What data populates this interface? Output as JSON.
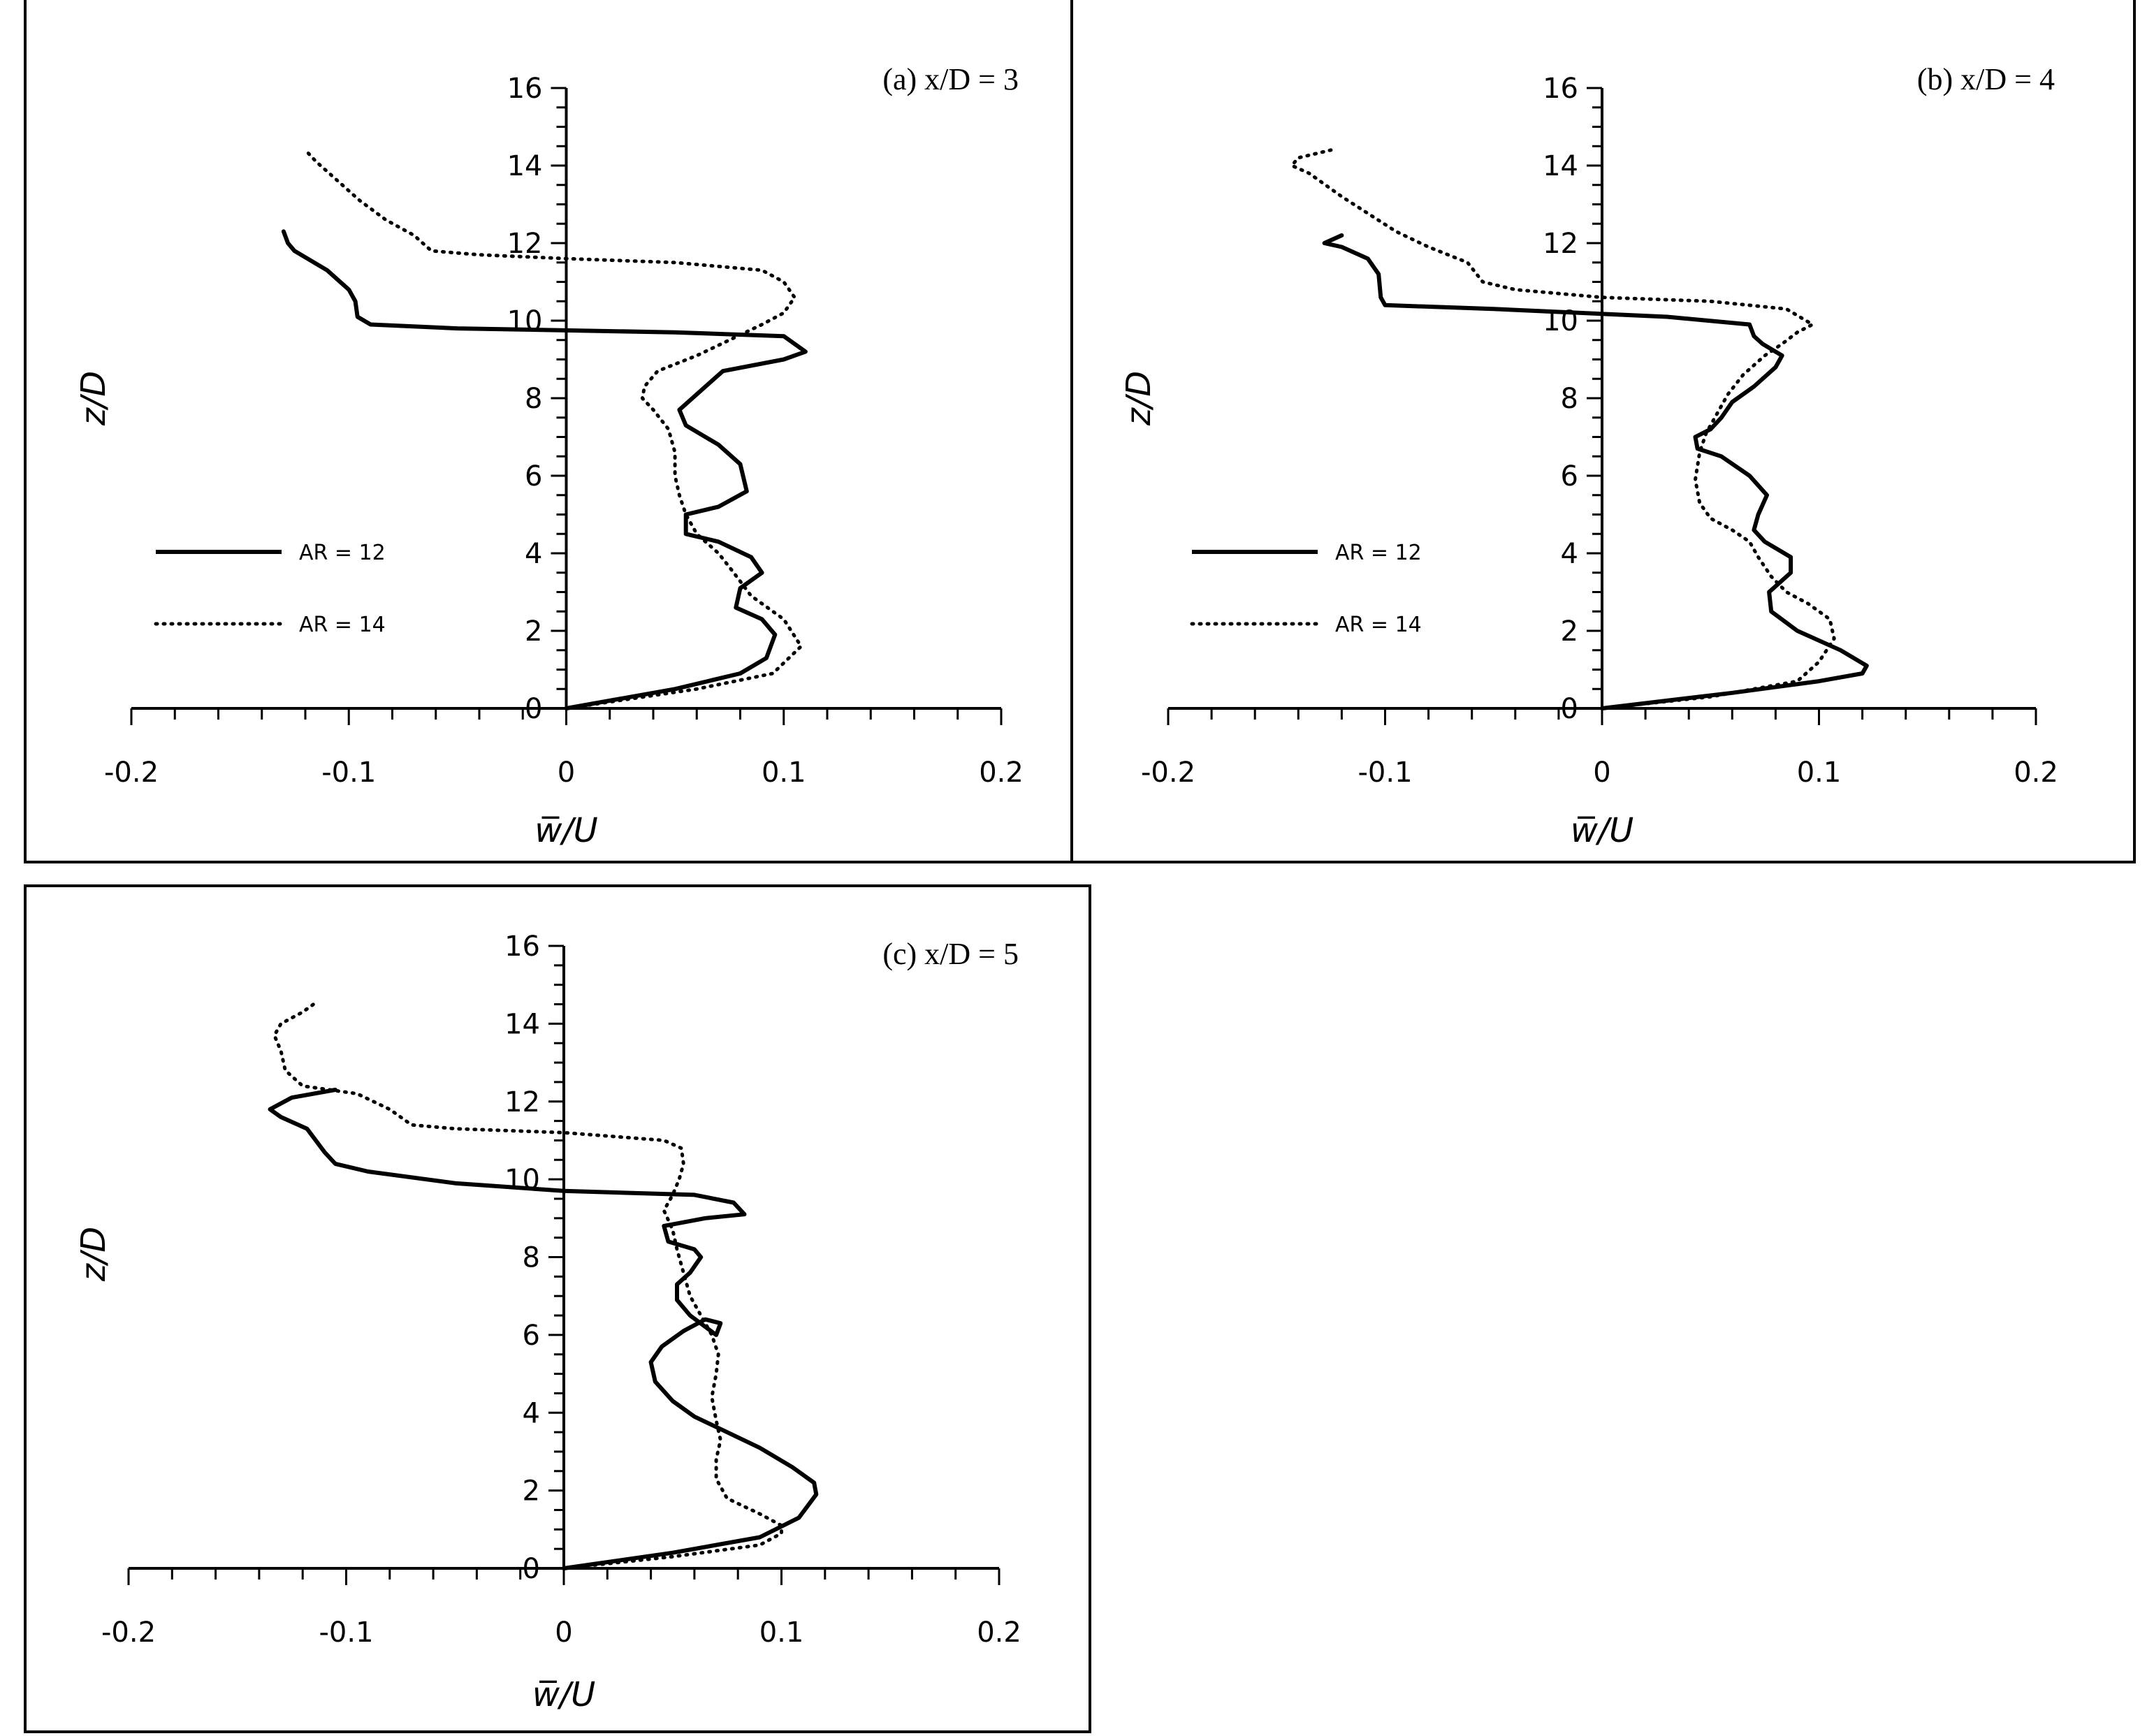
{
  "chart_data": [
    {
      "type": "line",
      "title": "(a) x/D = 3",
      "xlabel": "w̅/U",
      "ylabel": "z/D",
      "xlim": [
        -0.2,
        0.2
      ],
      "ylim": [
        0,
        16
      ],
      "xticks": [
        "-0.2",
        "-0.1",
        "0",
        "0.1",
        "0.2"
      ],
      "yticks": [
        "0",
        "2",
        "4",
        "6",
        "8",
        "10",
        "12",
        "14",
        "16"
      ],
      "legend": "middle-left",
      "series": [
        {
          "name": "AR = 12",
          "style": "solid",
          "points": [
            [
              0,
              0
            ],
            [
              0.05,
              0.5
            ],
            [
              0.08,
              0.9
            ],
            [
              0.092,
              1.3
            ],
            [
              0.096,
              1.9
            ],
            [
              0.09,
              2.3
            ],
            [
              0.078,
              2.6
            ],
            [
              0.08,
              3.1
            ],
            [
              0.09,
              3.5
            ],
            [
              0.085,
              3.9
            ],
            [
              0.07,
              4.3
            ],
            [
              0.055,
              4.5
            ],
            [
              0.055,
              5.0
            ],
            [
              0.07,
              5.2
            ],
            [
              0.083,
              5.6
            ],
            [
              0.08,
              6.3
            ],
            [
              0.07,
              6.8
            ],
            [
              0.055,
              7.3
            ],
            [
              0.052,
              7.7
            ],
            [
              0.062,
              8.2
            ],
            [
              0.072,
              8.7
            ],
            [
              0.1,
              9.0
            ],
            [
              0.11,
              9.2
            ],
            [
              0.1,
              9.6
            ],
            [
              0.05,
              9.7
            ],
            [
              -0.05,
              9.8
            ],
            [
              -0.09,
              9.9
            ],
            [
              -0.096,
              10.1
            ],
            [
              -0.097,
              10.5
            ],
            [
              -0.1,
              10.8
            ],
            [
              -0.11,
              11.3
            ],
            [
              -0.125,
              11.8
            ],
            [
              -0.128,
              12.0
            ],
            [
              -0.13,
              12.3
            ]
          ]
        },
        {
          "name": "AR = 14",
          "style": "dotted",
          "points": [
            [
              0,
              0
            ],
            [
              0.06,
              0.5
            ],
            [
              0.095,
              0.9
            ],
            [
              0.108,
              1.6
            ],
            [
              0.1,
              2.3
            ],
            [
              0.085,
              2.9
            ],
            [
              0.077,
              3.5
            ],
            [
              0.07,
              4.0
            ],
            [
              0.06,
              4.5
            ],
            [
              0.055,
              5.0
            ],
            [
              0.052,
              5.5
            ],
            [
              0.05,
              6.0
            ],
            [
              0.05,
              6.6
            ],
            [
              0.047,
              7.2
            ],
            [
              0.04,
              7.7
            ],
            [
              0.035,
              8.0
            ],
            [
              0.036,
              8.3
            ],
            [
              0.042,
              8.7
            ],
            [
              0.06,
              9.1
            ],
            [
              0.075,
              9.5
            ],
            [
              0.09,
              9.9
            ],
            [
              0.1,
              10.2
            ],
            [
              0.105,
              10.6
            ],
            [
              0.1,
              11.0
            ],
            [
              0.09,
              11.3
            ],
            [
              0.05,
              11.5
            ],
            [
              0.0,
              11.6
            ],
            [
              -0.04,
              11.7
            ],
            [
              -0.062,
              11.8
            ],
            [
              -0.07,
              12.2
            ],
            [
              -0.083,
              12.6
            ],
            [
              -0.095,
              13.1
            ],
            [
              -0.105,
              13.6
            ],
            [
              -0.115,
              14.1
            ],
            [
              -0.12,
              14.4
            ]
          ]
        }
      ]
    },
    {
      "type": "line",
      "title": "(b) x/D = 4",
      "xlabel": "w̅/U",
      "ylabel": "z/D",
      "xlim": [
        -0.2,
        0.2
      ],
      "ylim": [
        0,
        16
      ],
      "xticks": [
        "-0.2",
        "-0.1",
        "0",
        "0.1",
        "0.2"
      ],
      "yticks": [
        "0",
        "2",
        "4",
        "6",
        "8",
        "10",
        "12",
        "14",
        "16"
      ],
      "legend": "middle-left",
      "series": [
        {
          "name": "AR = 12",
          "style": "solid",
          "points": [
            [
              0,
              0
            ],
            [
              0.06,
              0.4
            ],
            [
              0.1,
              0.7
            ],
            [
              0.12,
              0.9
            ],
            [
              0.122,
              1.1
            ],
            [
              0.11,
              1.5
            ],
            [
              0.09,
              2.0
            ],
            [
              0.078,
              2.5
            ],
            [
              0.077,
              3.0
            ],
            [
              0.087,
              3.5
            ],
            [
              0.087,
              3.9
            ],
            [
              0.075,
              4.3
            ],
            [
              0.07,
              4.6
            ],
            [
              0.072,
              5.0
            ],
            [
              0.076,
              5.5
            ],
            [
              0.068,
              6.0
            ],
            [
              0.055,
              6.5
            ],
            [
              0.044,
              6.7
            ],
            [
              0.043,
              7.0
            ],
            [
              0.05,
              7.2
            ],
            [
              0.055,
              7.5
            ],
            [
              0.06,
              7.9
            ],
            [
              0.07,
              8.3
            ],
            [
              0.08,
              8.8
            ],
            [
              0.083,
              9.1
            ],
            [
              0.074,
              9.4
            ],
            [
              0.07,
              9.6
            ],
            [
              0.068,
              9.9
            ],
            [
              0.03,
              10.1
            ],
            [
              -0.05,
              10.3
            ],
            [
              -0.1,
              10.4
            ],
            [
              -0.102,
              10.6
            ],
            [
              -0.103,
              11.2
            ],
            [
              -0.108,
              11.6
            ],
            [
              -0.12,
              11.9
            ],
            [
              -0.128,
              12.0
            ],
            [
              -0.12,
              12.2
            ]
          ]
        },
        {
          "name": "AR = 14",
          "style": "dotted",
          "points": [
            [
              0,
              0
            ],
            [
              0.05,
              0.3
            ],
            [
              0.09,
              0.7
            ],
            [
              0.1,
              1.2
            ],
            [
              0.107,
              1.8
            ],
            [
              0.105,
              2.3
            ],
            [
              0.095,
              2.7
            ],
            [
              0.085,
              3.0
            ],
            [
              0.078,
              3.4
            ],
            [
              0.072,
              3.9
            ],
            [
              0.068,
              4.3
            ],
            [
              0.06,
              4.6
            ],
            [
              0.05,
              4.9
            ],
            [
              0.045,
              5.3
            ],
            [
              0.043,
              5.9
            ],
            [
              0.045,
              6.6
            ],
            [
              0.048,
              7.1
            ],
            [
              0.053,
              7.6
            ],
            [
              0.058,
              8.1
            ],
            [
              0.065,
              8.6
            ],
            [
              0.075,
              9.1
            ],
            [
              0.083,
              9.4
            ],
            [
              0.09,
              9.7
            ],
            [
              0.097,
              9.9
            ],
            [
              0.085,
              10.3
            ],
            [
              0.05,
              10.5
            ],
            [
              0.0,
              10.6
            ],
            [
              -0.04,
              10.8
            ],
            [
              -0.055,
              11.0
            ],
            [
              -0.062,
              11.5
            ],
            [
              -0.08,
              11.9
            ],
            [
              -0.095,
              12.3
            ],
            [
              -0.12,
              13.2
            ],
            [
              -0.135,
              13.8
            ],
            [
              -0.143,
              14.0
            ],
            [
              -0.14,
              14.2
            ],
            [
              -0.125,
              14.4
            ]
          ]
        }
      ]
    },
    {
      "type": "line",
      "title": "(c) x/D = 5",
      "xlabel": "w̅/U",
      "ylabel": "z/D",
      "xlim": [
        -0.2,
        0.2
      ],
      "ylim": [
        0,
        16
      ],
      "xticks": [
        "-0.2",
        "-0.1",
        "0",
        "0.1",
        "0.2"
      ],
      "yticks": [
        "0",
        "2",
        "4",
        "6",
        "8",
        "10",
        "12",
        "14",
        "16"
      ],
      "series": [
        {
          "name": "AR = 12",
          "style": "solid",
          "points": [
            [
              0,
              0
            ],
            [
              0.05,
              0.4
            ],
            [
              0.09,
              0.8
            ],
            [
              0.108,
              1.3
            ],
            [
              0.116,
              1.9
            ],
            [
              0.115,
              2.2
            ],
            [
              0.105,
              2.6
            ],
            [
              0.09,
              3.1
            ],
            [
              0.075,
              3.5
            ],
            [
              0.06,
              3.9
            ],
            [
              0.05,
              4.3
            ],
            [
              0.042,
              4.8
            ],
            [
              0.04,
              5.3
            ],
            [
              0.045,
              5.7
            ],
            [
              0.055,
              6.1
            ],
            [
              0.065,
              6.4
            ],
            [
              0.072,
              6.3
            ],
            [
              0.07,
              6.0
            ],
            [
              0.058,
              6.5
            ],
            [
              0.052,
              6.9
            ],
            [
              0.052,
              7.3
            ],
            [
              0.058,
              7.6
            ],
            [
              0.063,
              8.0
            ],
            [
              0.06,
              8.2
            ],
            [
              0.048,
              8.4
            ],
            [
              0.046,
              8.8
            ],
            [
              0.065,
              9.0
            ],
            [
              0.083,
              9.1
            ],
            [
              0.078,
              9.4
            ],
            [
              0.06,
              9.6
            ],
            [
              0.0,
              9.7
            ],
            [
              -0.05,
              9.9
            ],
            [
              -0.09,
              10.2
            ],
            [
              -0.105,
              10.4
            ],
            [
              -0.11,
              10.7
            ],
            [
              -0.118,
              11.3
            ],
            [
              -0.13,
              11.6
            ],
            [
              -0.135,
              11.8
            ],
            [
              -0.125,
              12.1
            ],
            [
              -0.105,
              12.3
            ]
          ]
        },
        {
          "name": "AR = 14",
          "style": "dotted",
          "points": [
            [
              0,
              0
            ],
            [
              0.05,
              0.3
            ],
            [
              0.09,
              0.6
            ],
            [
              0.1,
              0.9
            ],
            [
              0.1,
              1.1
            ],
            [
              0.09,
              1.4
            ],
            [
              0.075,
              1.8
            ],
            [
              0.07,
              2.3
            ],
            [
              0.07,
              2.8
            ],
            [
              0.072,
              3.3
            ],
            [
              0.07,
              3.8
            ],
            [
              0.068,
              4.4
            ],
            [
              0.07,
              5.0
            ],
            [
              0.071,
              5.5
            ],
            [
              0.068,
              6.0
            ],
            [
              0.063,
              6.5
            ],
            [
              0.058,
              7.0
            ],
            [
              0.055,
              7.6
            ],
            [
              0.052,
              8.2
            ],
            [
              0.05,
              8.7
            ],
            [
              0.046,
              9.2
            ],
            [
              0.05,
              9.6
            ],
            [
              0.053,
              10.0
            ],
            [
              0.055,
              10.4
            ],
            [
              0.054,
              10.8
            ],
            [
              0.046,
              11.0
            ],
            [
              0.0,
              11.2
            ],
            [
              -0.05,
              11.3
            ],
            [
              -0.07,
              11.4
            ],
            [
              -0.08,
              11.8
            ],
            [
              -0.095,
              12.2
            ],
            [
              -0.12,
              12.4
            ],
            [
              -0.128,
              12.8
            ],
            [
              -0.13,
              13.3
            ],
            [
              -0.133,
              13.7
            ],
            [
              -0.13,
              14.0
            ],
            [
              -0.12,
              14.3
            ],
            [
              -0.115,
              14.5
            ]
          ]
        }
      ]
    }
  ]
}
